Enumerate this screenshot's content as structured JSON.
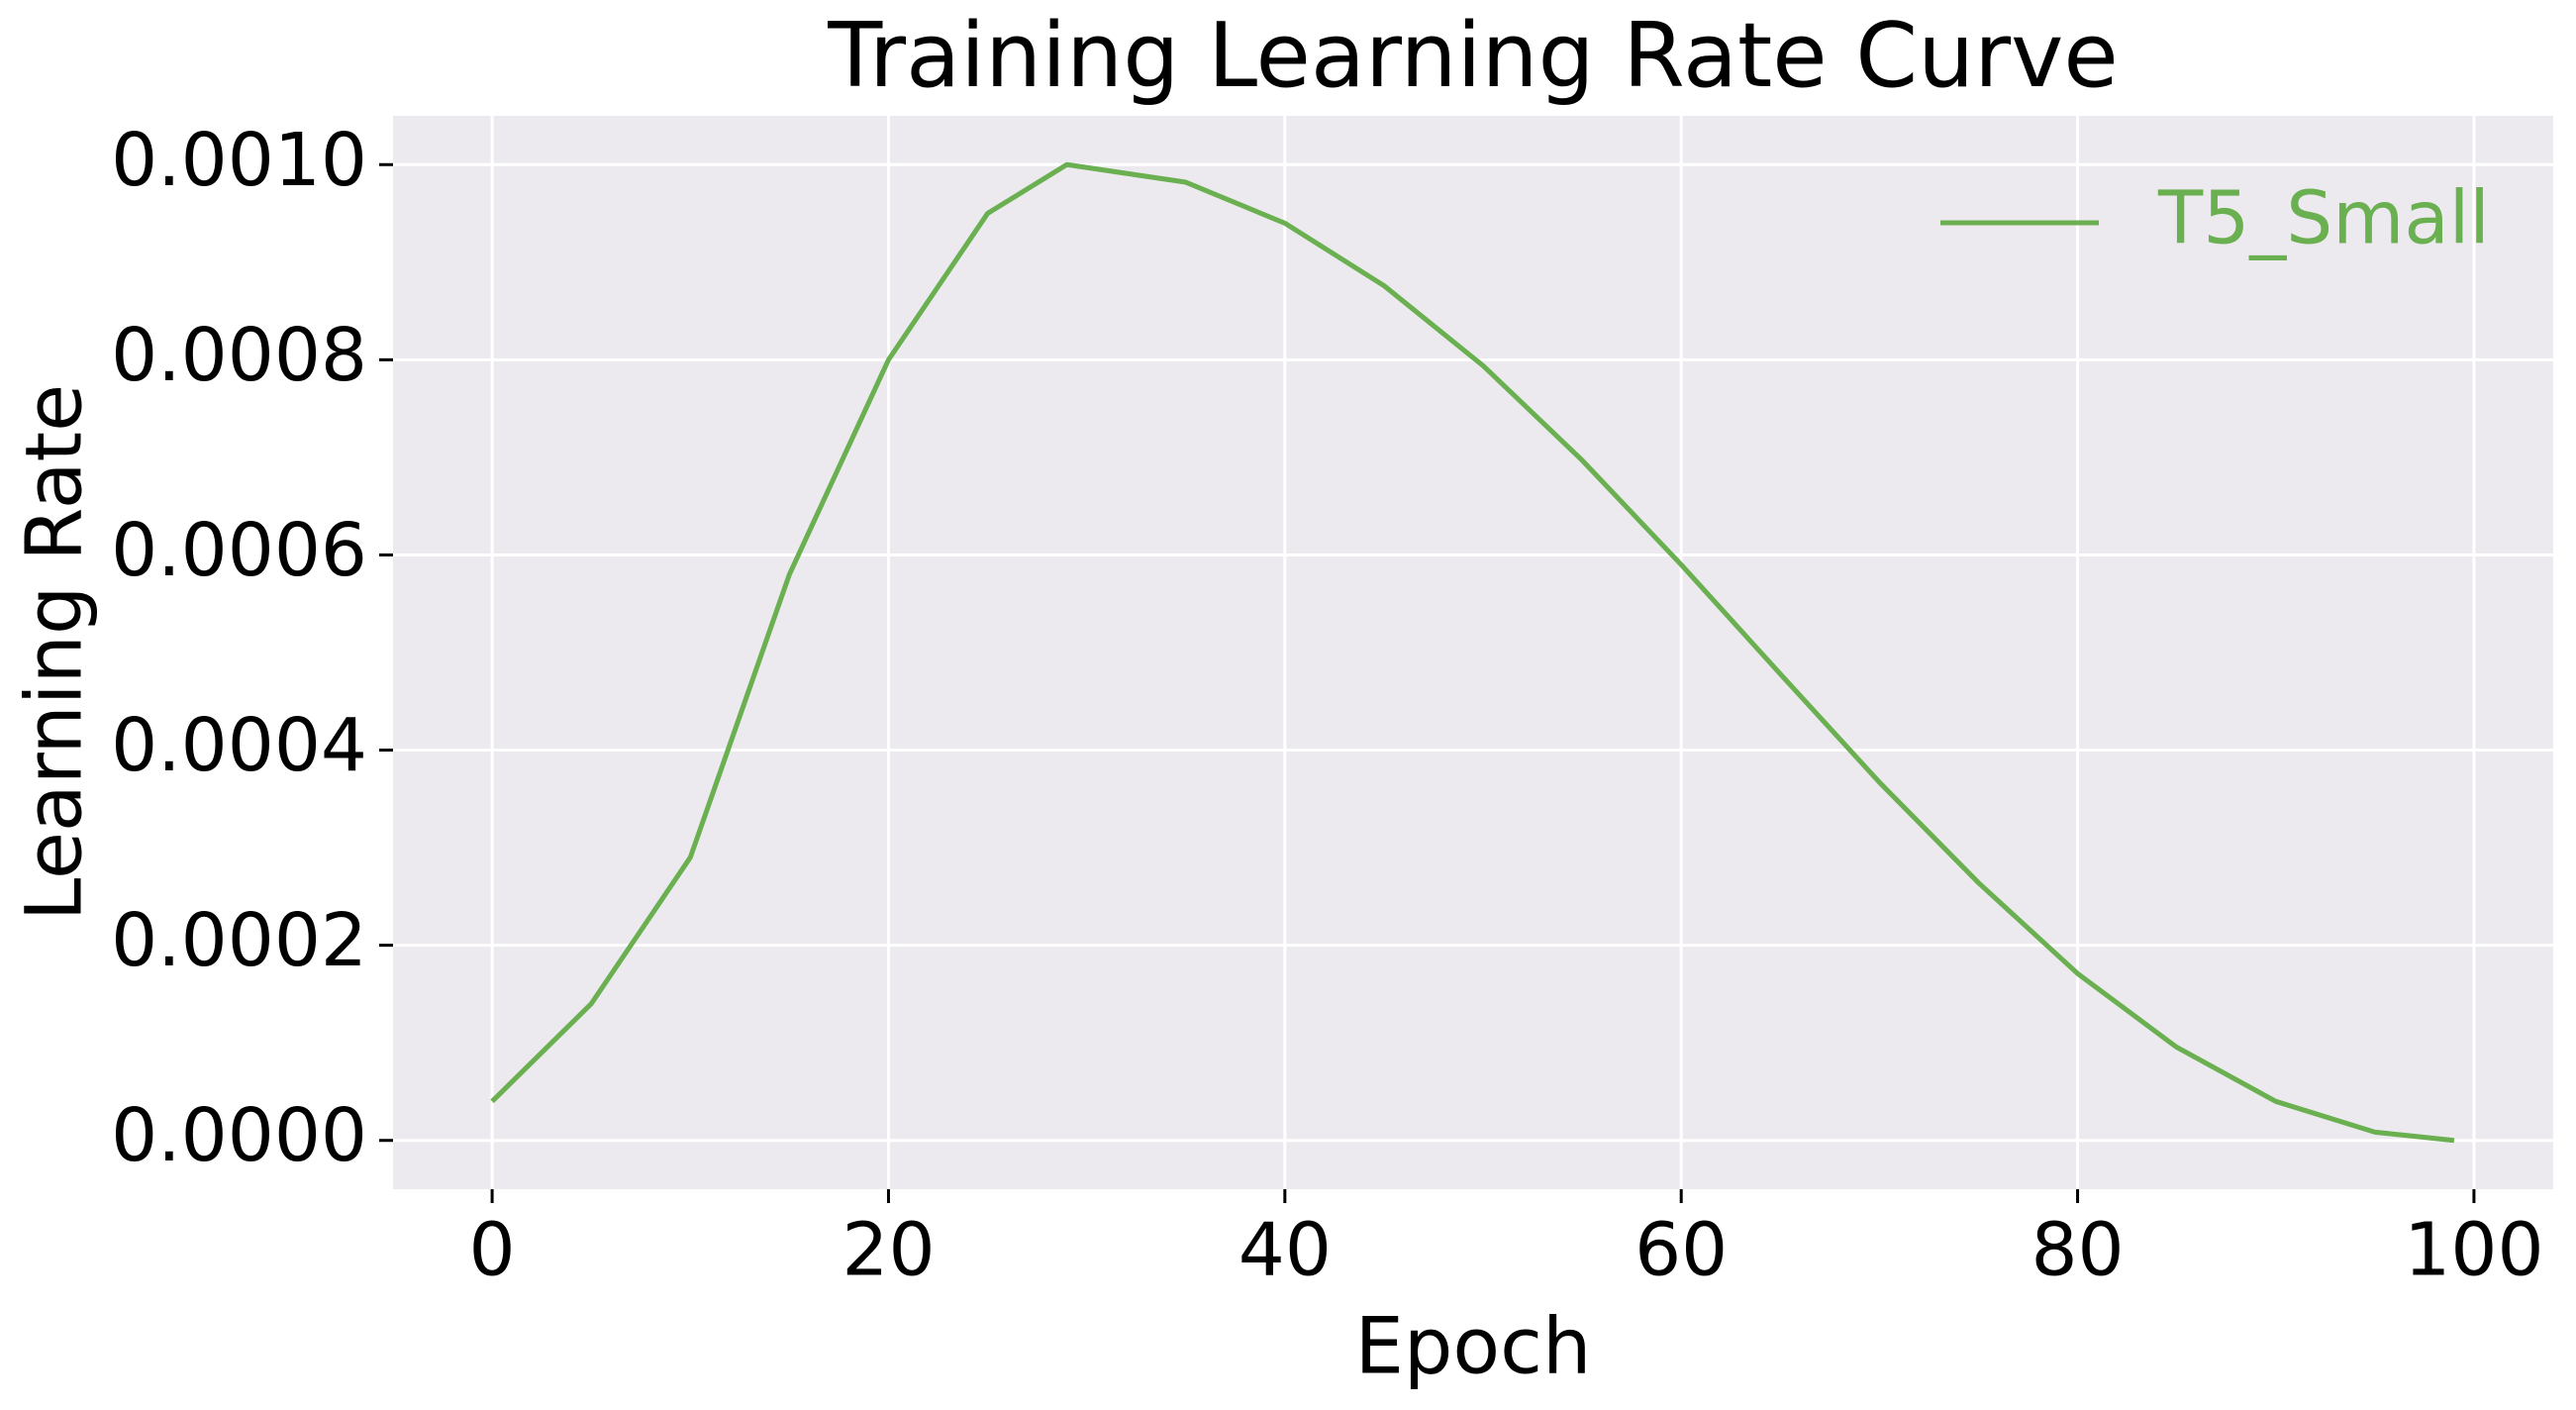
{
  "chart_data": {
    "type": "line",
    "title": "Training Learning Rate Curve",
    "x_label": "Epoch",
    "y_label": "Learning Rate",
    "x": [
      0,
      5,
      10,
      15,
      20,
      25,
      29,
      35,
      40,
      45,
      50,
      55,
      60,
      65,
      70,
      75,
      80,
      85,
      90,
      95,
      99
    ],
    "series": [
      {
        "name": "T5_Small",
        "color": "#6aaf50",
        "values": [
          4e-05,
          0.00014,
          0.00029,
          0.00058,
          0.0008,
          0.00095,
          0.001,
          0.000982,
          0.00094,
          0.000876,
          0.000794,
          0.000697,
          0.00059,
          0.000478,
          0.000367,
          0.000264,
          0.000171,
          9.55e-05,
          4e-05,
          8.5e-06,
          0
        ]
      }
    ],
    "xlim": [
      -5,
      104
    ],
    "ylim": [
      -5e-05,
      0.00105
    ],
    "xticks": [
      0,
      20,
      40,
      60,
      80,
      100
    ],
    "yticks": [
      {
        "value": 0,
        "label": "0.0000"
      },
      {
        "value": 0.0002,
        "label": "0.0002"
      },
      {
        "value": 0.0004,
        "label": "0.0004"
      },
      {
        "value": 0.0006,
        "label": "0.0006"
      },
      {
        "value": 0.0008,
        "label": "0.0008"
      },
      {
        "value": 0.001,
        "label": "0.0010"
      }
    ],
    "grid": true,
    "legend": "upper right"
  }
}
